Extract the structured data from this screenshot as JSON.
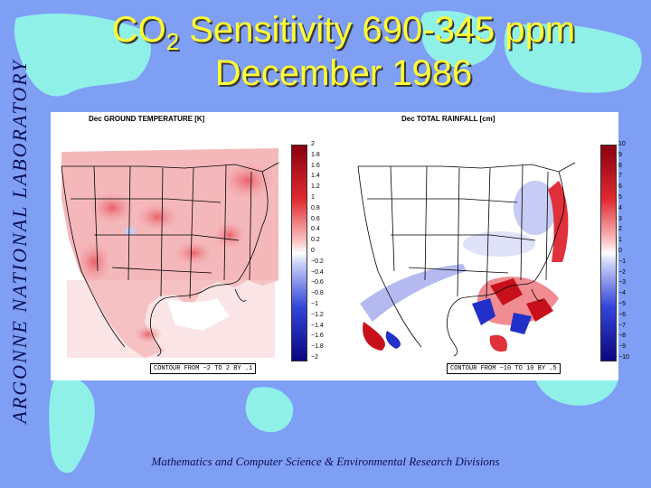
{
  "slide": {
    "side_label": "ARGONNE NATIONAL LABORATORY",
    "title_prefix": "CO",
    "title_subscript": "2",
    "title_rest": " Sensitivity 690-345 ppm",
    "title_line2": "December 1986",
    "footer": "Mathematics and Computer Science & Environmental Research Divisions"
  },
  "colors": {
    "background": "#7f9ff5",
    "continents": "#8ff0e8",
    "title": "#ffff33",
    "side_label": "#0a0f55"
  },
  "panels": [
    {
      "title": "Dec GROUND TEMPERATURE [K]",
      "colorbar_labels": [
        "2",
        "1.8",
        "1.6",
        "1.4",
        "1.2",
        "1",
        "0.8",
        "0.6",
        "0.4",
        "0.2",
        "0",
        "−0.2",
        "−0.4",
        "−0.6",
        "−0.8",
        "−1",
        "−1.2",
        "−1.4",
        "−1.6",
        "−1.8",
        "−2"
      ],
      "contour": "CONTOUR FROM −2 TO 2 BY .1"
    },
    {
      "title": "Dec TOTAL RAINFALL [cm]",
      "colorbar_labels": [
        "10",
        "9",
        "8",
        "7",
        "6",
        "5",
        "4",
        "3",
        "2",
        "1",
        "0",
        "−1",
        "−2",
        "−3",
        "−4",
        "−5",
        "−6",
        "−7",
        "−8",
        "−9",
        "−10"
      ],
      "contour": "CONTOUR FROM −10 TO 10 BY .5"
    }
  ]
}
